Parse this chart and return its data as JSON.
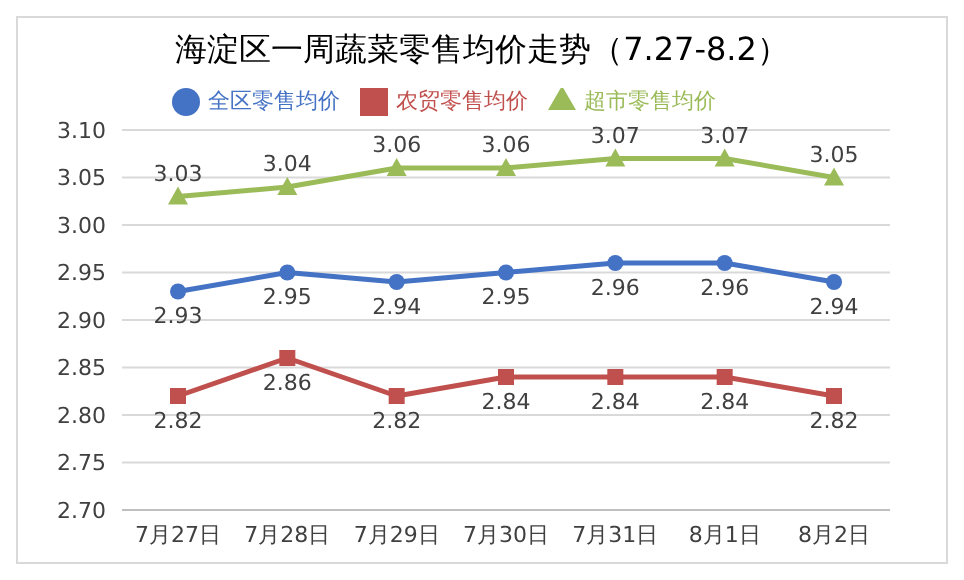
{
  "chart_data": {
    "type": "line",
    "title": "海淀区一周蔬菜零售均价走势（7.27-8.2）",
    "categories": [
      "7月27日",
      "7月28日",
      "7月29日",
      "7月30日",
      "7月31日",
      "8月1日",
      "8月2日"
    ],
    "series": [
      {
        "name": "全区零售均价",
        "color": "#4472c4",
        "marker": "circle",
        "values": [
          2.93,
          2.95,
          2.94,
          2.95,
          2.96,
          2.96,
          2.94
        ]
      },
      {
        "name": "农贸零售均价",
        "color": "#c0504d",
        "marker": "square",
        "values": [
          2.82,
          2.86,
          2.82,
          2.84,
          2.84,
          2.84,
          2.82
        ]
      },
      {
        "name": "超市零售均价",
        "color": "#9bbb59",
        "marker": "triangle",
        "values": [
          3.03,
          3.04,
          3.06,
          3.06,
          3.07,
          3.07,
          3.05
        ]
      }
    ],
    "ylim": [
      2.7,
      3.1
    ],
    "yticks": [
      {
        "value": 2.7,
        "label": "2.70"
      },
      {
        "value": 2.75,
        "label": "2.75"
      },
      {
        "value": 2.8,
        "label": "2.80"
      },
      {
        "value": 2.85,
        "label": "2.85"
      },
      {
        "value": 2.9,
        "label": "2.90"
      },
      {
        "value": 2.95,
        "label": "2.95"
      },
      {
        "value": 3.0,
        "label": "3.00"
      },
      {
        "value": 3.05,
        "label": "3.05"
      },
      {
        "value": 3.1,
        "label": "3.10"
      }
    ],
    "grid": "y",
    "legend": "top",
    "data_labels": true
  }
}
